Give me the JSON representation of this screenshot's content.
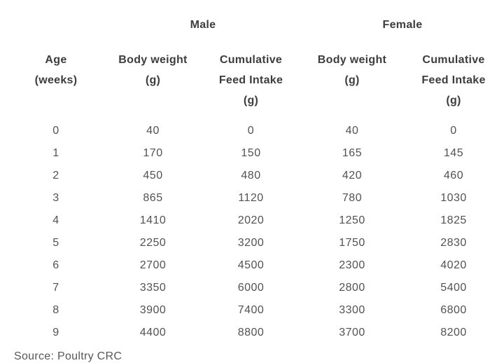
{
  "colors": {
    "background": "#ffffff",
    "header_text": "#3d3d3d",
    "data_text": "#525252",
    "source_text": "#575757"
  },
  "table": {
    "group_headers": {
      "male": "Male",
      "female": "Female"
    },
    "columns": [
      {
        "label": "Age (weeks)",
        "lines": [
          "Age",
          "(weeks)"
        ]
      },
      {
        "label": "Body weight (g)",
        "lines": [
          "Body weight",
          "(g)"
        ]
      },
      {
        "label": "Cumulative Feed Intake (g)",
        "lines": [
          "Cumulative",
          "Feed Intake",
          "(g)"
        ]
      },
      {
        "label": "Body weight (g)",
        "lines": [
          "Body weight",
          "(g)"
        ]
      },
      {
        "label": "Cumulative Feed Intake (g)",
        "lines": [
          "Cumulative",
          "Feed Intake",
          "(g)"
        ]
      }
    ],
    "rows": [
      [
        "0",
        "40",
        "0",
        "40",
        "0"
      ],
      [
        "1",
        "170",
        "150",
        "165",
        "145"
      ],
      [
        "2",
        "450",
        "480",
        "420",
        "460"
      ],
      [
        "3",
        "865",
        "1120",
        "780",
        "1030"
      ],
      [
        "4",
        "1410",
        "2020",
        "1250",
        "1825"
      ],
      [
        "5",
        "2250",
        "3200",
        "1750",
        "2830"
      ],
      [
        "6",
        "2700",
        "4500",
        "2300",
        "4020"
      ],
      [
        "7",
        "3350",
        "6000",
        "2800",
        "5400"
      ],
      [
        "8",
        "3900",
        "7400",
        "3300",
        "6800"
      ],
      [
        "9",
        "4400",
        "8800",
        "3700",
        "8200"
      ]
    ],
    "source": "Source: Poultry CRC"
  },
  "chart_data": {
    "type": "table",
    "title": "",
    "group_headers": [
      "Male",
      "Female"
    ],
    "columns": [
      "Age (weeks)",
      "Male Body weight (g)",
      "Male Cumulative Feed Intake (g)",
      "Female Body weight (g)",
      "Female Cumulative Feed Intake (g)"
    ],
    "x": [
      0,
      1,
      2,
      3,
      4,
      5,
      6,
      7,
      8,
      9
    ],
    "xlabel": "Age (weeks)",
    "series": [
      {
        "name": "Male Body weight (g)",
        "values": [
          40,
          170,
          450,
          865,
          1410,
          2250,
          2700,
          3350,
          3900,
          4400
        ]
      },
      {
        "name": "Male Cumulative Feed Intake (g)",
        "values": [
          0,
          150,
          480,
          1120,
          2020,
          3200,
          4500,
          6000,
          7400,
          8800
        ]
      },
      {
        "name": "Female Body weight (g)",
        "values": [
          40,
          165,
          420,
          780,
          1250,
          1750,
          2300,
          2800,
          3300,
          3700
        ]
      },
      {
        "name": "Female Cumulative Feed Intake (g)",
        "values": [
          0,
          145,
          460,
          1030,
          1825,
          2830,
          4020,
          5400,
          6800,
          8200
        ]
      }
    ],
    "source": "Source: Poultry CRC"
  }
}
